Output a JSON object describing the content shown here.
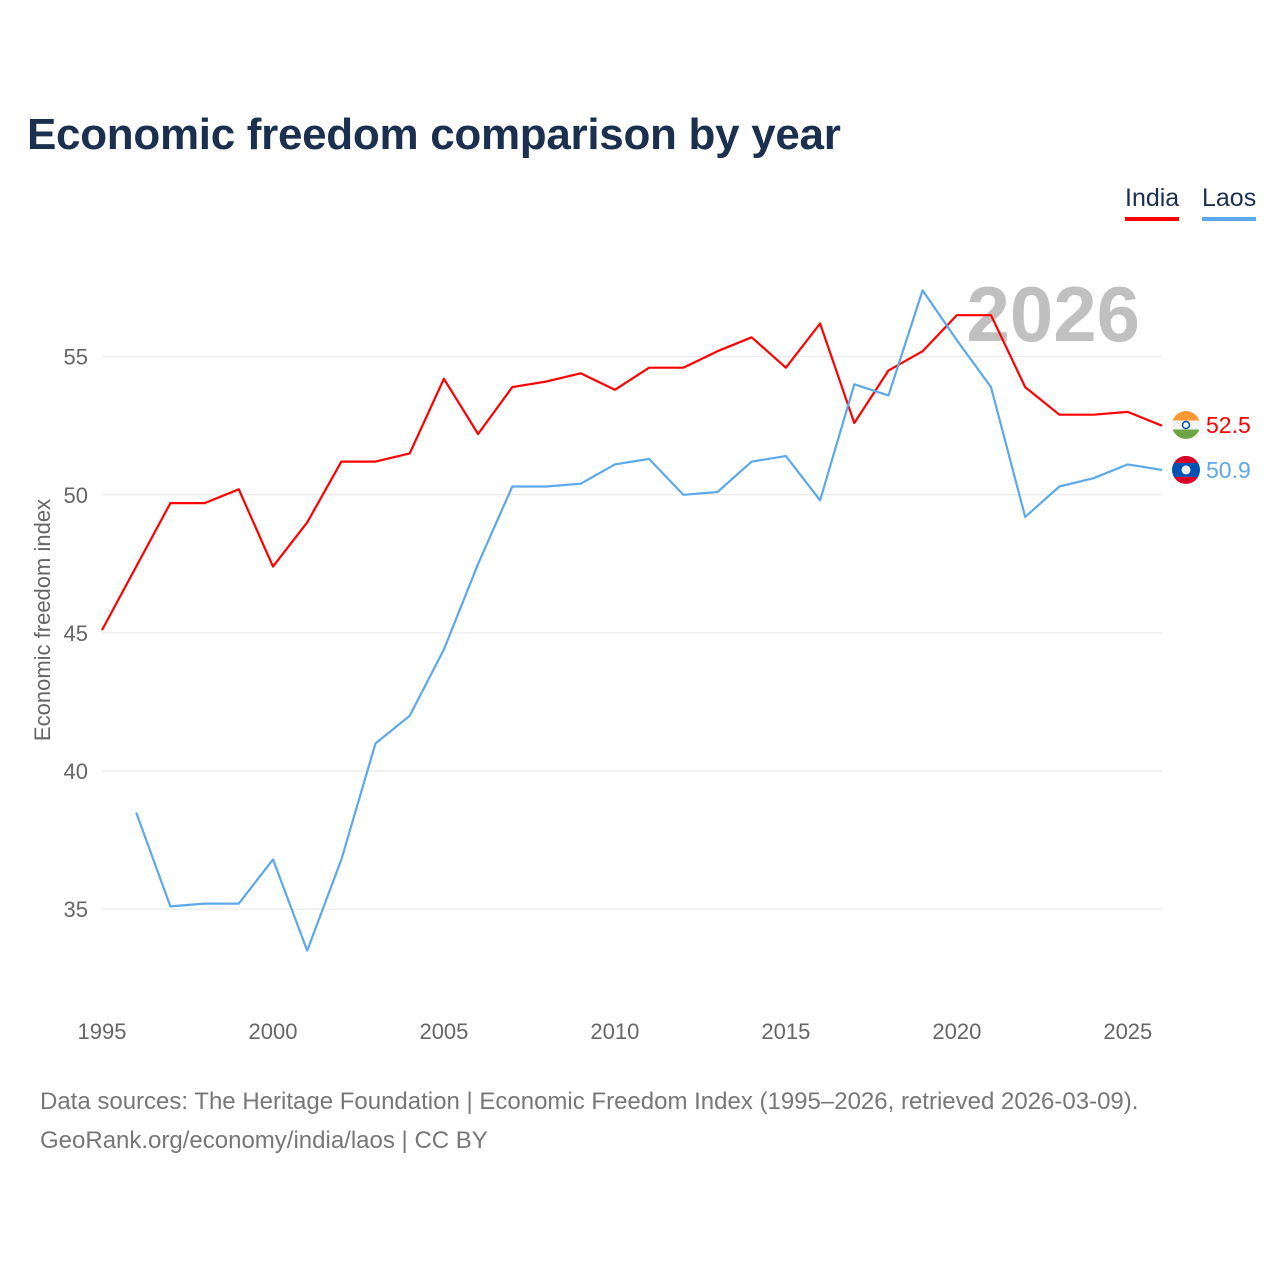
{
  "chart_data": {
    "type": "line",
    "title": "Economic freedom comparison by year",
    "xlabel": "",
    "ylabel": "Economic freedom index",
    "xlim": [
      1995,
      2026
    ],
    "ylim": [
      32,
      58.5
    ],
    "xticks": [
      1995,
      2000,
      2005,
      2010,
      2015,
      2020,
      2025
    ],
    "yticks": [
      35,
      40,
      45,
      50,
      55
    ],
    "grid": true,
    "legend_position": "top-right",
    "watermark_year": "2026",
    "series": [
      {
        "name": "India",
        "color": "#ff0000",
        "end_label": "52.5",
        "x": [
          1995,
          1996,
          1997,
          1998,
          1999,
          2000,
          2001,
          2002,
          2003,
          2004,
          2005,
          2006,
          2007,
          2008,
          2009,
          2010,
          2011,
          2012,
          2013,
          2014,
          2015,
          2016,
          2017,
          2018,
          2019,
          2020,
          2021,
          2022,
          2023,
          2024,
          2025,
          2026
        ],
        "values": [
          45.1,
          47.4,
          49.7,
          49.7,
          50.2,
          47.4,
          49.0,
          51.2,
          51.2,
          51.5,
          54.2,
          52.2,
          53.9,
          54.1,
          54.4,
          53.8,
          54.6,
          54.6,
          55.2,
          55.7,
          54.6,
          56.2,
          52.6,
          54.5,
          55.2,
          56.5,
          56.5,
          53.9,
          52.9,
          52.9,
          53.0,
          52.5
        ]
      },
      {
        "name": "Laos",
        "color": "#5da8ea",
        "end_label": "50.9",
        "x": [
          1996,
          1997,
          1998,
          1999,
          2000,
          2001,
          2002,
          2003,
          2004,
          2005,
          2006,
          2007,
          2008,
          2009,
          2010,
          2011,
          2012,
          2013,
          2014,
          2015,
          2016,
          2017,
          2018,
          2019,
          2020,
          2021,
          2022,
          2023,
          2024,
          2025,
          2026
        ],
        "values": [
          38.5,
          35.1,
          35.2,
          35.2,
          36.8,
          33.5,
          36.8,
          41.0,
          42.0,
          44.4,
          47.5,
          50.3,
          50.3,
          50.4,
          51.1,
          51.3,
          50.0,
          50.1,
          51.2,
          51.4,
          49.8,
          54.0,
          53.6,
          57.4,
          55.6,
          53.9,
          49.2,
          50.3,
          50.6,
          51.1,
          50.9
        ]
      }
    ]
  },
  "legend": {
    "india": "India",
    "laos": "Laos"
  },
  "footer": {
    "line1": "Data sources: The Heritage Foundation | Economic Freedom Index (1995–2026, retrieved 2026-03-09).",
    "line2": "GeoRank.org/economy/india/laos | CC BY"
  }
}
